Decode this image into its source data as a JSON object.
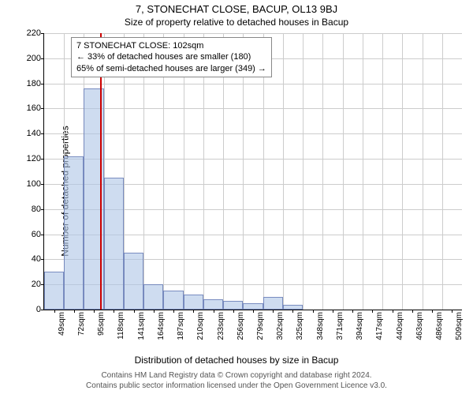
{
  "title": "7, STONECHAT CLOSE, BACUP, OL13 9BJ",
  "subtitle": "Size of property relative to detached houses in Bacup",
  "legend": {
    "line1": "7 STONECHAT CLOSE: 102sqm",
    "line2": "← 33% of detached houses are smaller (180)",
    "line3": "65% of semi-detached houses are larger (349) →"
  },
  "ylabel": "Number of detached properties",
  "xlabel": "Distribution of detached houses by size in Bacup",
  "footnote1": "Contains HM Land Registry data © Crown copyright and database right 2024.",
  "footnote2": "Contains public sector information licensed under the Open Government Licence v3.0.",
  "chart": {
    "type": "histogram",
    "ylim": [
      0,
      220
    ],
    "ytick_step": 20,
    "x_start": 49,
    "x_step": 23,
    "x_count": 21,
    "x_unit": "sqm",
    "bar_color": "rgba(173,196,230,0.6)",
    "bar_border": "rgba(100,120,180,0.8)",
    "grid_color": "#cccccc",
    "marker_color": "#cc0000",
    "marker_x_value": 102,
    "values": [
      30,
      122,
      176,
      105,
      45,
      20,
      15,
      12,
      8,
      7,
      5,
      10,
      4,
      0,
      0,
      0,
      0,
      0,
      0,
      0,
      0
    ]
  }
}
